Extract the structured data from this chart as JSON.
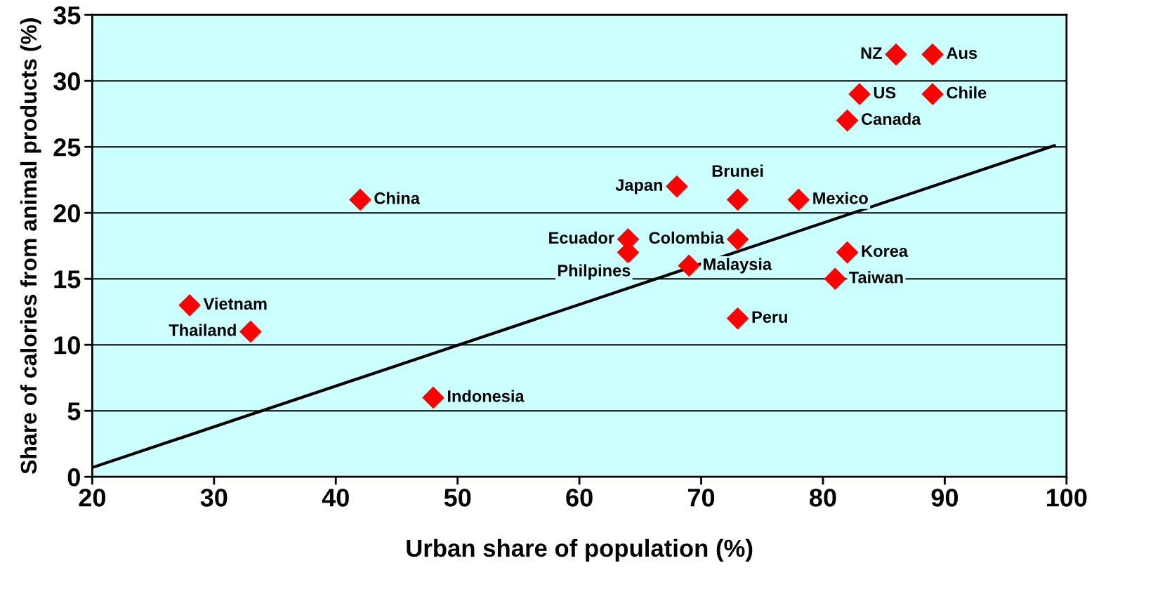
{
  "chart_data": {
    "type": "scatter",
    "xlabel": "Urban share of population (%)",
    "ylabel": "Share of calories from animal products (%)",
    "xlim": [
      20,
      100
    ],
    "xticks": [
      20,
      30,
      40,
      50,
      60,
      70,
      80,
      90,
      100
    ],
    "ylim": [
      0,
      35
    ],
    "yticks": [
      0,
      5,
      10,
      15,
      20,
      25,
      30,
      35
    ],
    "grid": "y",
    "legend": false,
    "series": [
      {
        "marker": "diamond",
        "color": "#ff0000",
        "x": [
          86,
          89,
          83,
          89,
          82,
          68,
          73,
          78,
          42,
          64,
          73,
          64,
          69,
          82,
          81,
          73,
          28,
          33,
          48
        ],
        "values": [
          32,
          32,
          29,
          29,
          27,
          22,
          21,
          21,
          21,
          18,
          18,
          17,
          16,
          17,
          15,
          12,
          13,
          11,
          6
        ]
      },
      {
        "type": "line",
        "color": "#000000",
        "x": [
          20,
          99
        ],
        "values": [
          0.7,
          25.1
        ]
      }
    ],
    "annotations": [
      {
        "text": "NZ",
        "x": 86,
        "y": 32
      },
      {
        "text": "Aus",
        "x": 89,
        "y": 32
      },
      {
        "text": "US",
        "x": 83,
        "y": 29
      },
      {
        "text": "Chile",
        "x": 89,
        "y": 29
      },
      {
        "text": "Canada",
        "x": 82,
        "y": 27
      },
      {
        "text": "Japan",
        "x": 68,
        "y": 22
      },
      {
        "text": "Brunei",
        "x": 73,
        "y": 21
      },
      {
        "text": "Mexico",
        "x": 78,
        "y": 21
      },
      {
        "text": "China",
        "x": 42,
        "y": 21
      },
      {
        "text": "Ecuador",
        "x": 64,
        "y": 18
      },
      {
        "text": "Colombia",
        "x": 73,
        "y": 18
      },
      {
        "text": "Philpines",
        "x": 64,
        "y": 17
      },
      {
        "text": "Malaysia",
        "x": 69,
        "y": 16
      },
      {
        "text": "Korea",
        "x": 82,
        "y": 17
      },
      {
        "text": "Taiwan",
        "x": 81,
        "y": 15
      },
      {
        "text": "Peru",
        "x": 73,
        "y": 12
      },
      {
        "text": "Vietnam",
        "x": 28,
        "y": 13
      },
      {
        "text": "Thailand",
        "x": 33,
        "y": 11
      },
      {
        "text": "Indonesia",
        "x": 48,
        "y": 6
      }
    ]
  }
}
